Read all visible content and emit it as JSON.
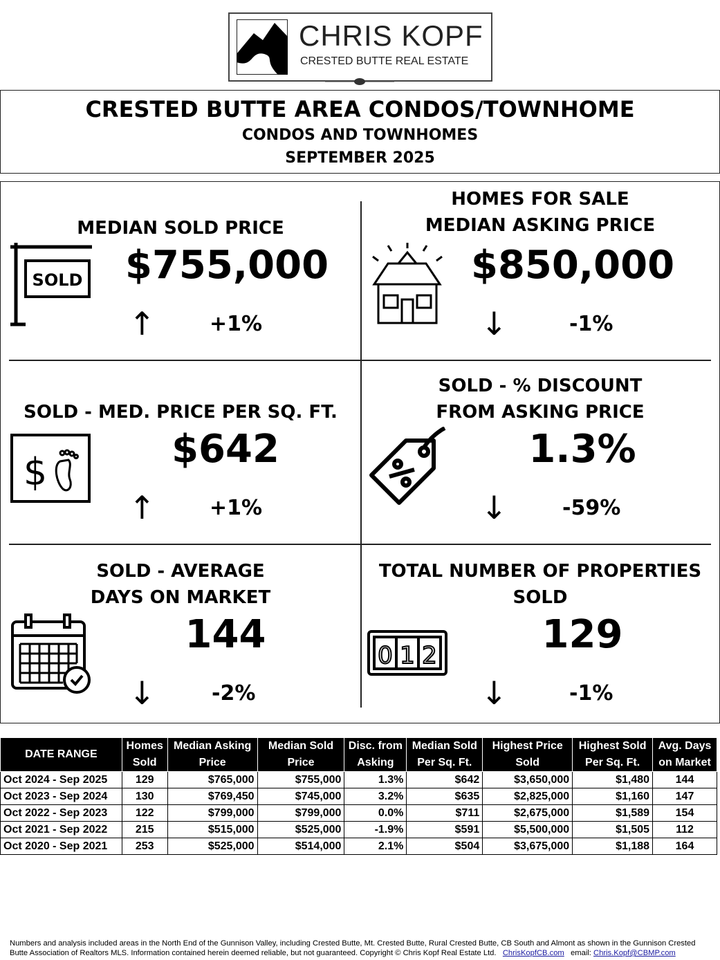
{
  "logo": {
    "name": "CHRIS KOPF",
    "tagline": "CRESTED BUTTE REAL ESTATE"
  },
  "header": {
    "title": "CRESTED BUTTE AREA CONDOS/TOWNHOME",
    "subtitle": "CONDOS AND TOWNHOMES",
    "period": "SEPTEMBER 2025"
  },
  "metrics": [
    {
      "label": "MEDIAN SOLD PRICE",
      "value": "$755,000",
      "change": "+1%",
      "direction": "up",
      "icon": "sold-sign-icon"
    },
    {
      "label1": "HOMES FOR SALE",
      "label2": "MEDIAN ASKING PRICE",
      "value": "$850,000",
      "change": "-1%",
      "direction": "down",
      "icon": "house-icon"
    },
    {
      "label": "SOLD - MED. PRICE PER SQ. FT.",
      "value": "$642",
      "change": "+1%",
      "direction": "up",
      "icon": "dollar-footprint-icon"
    },
    {
      "label1": "SOLD - % DISCOUNT",
      "label2": "FROM ASKING PRICE",
      "value": "1.3%",
      "change": "-59%",
      "direction": "down",
      "icon": "discount-tag-icon"
    },
    {
      "label1": "SOLD - AVERAGE",
      "label2": "DAYS ON MARKET",
      "value": "144",
      "change": "-2%",
      "direction": "down",
      "icon": "calendar-icon"
    },
    {
      "label1": "TOTAL NUMBER OF PROPERTIES",
      "label2": "SOLD",
      "value": "129",
      "change": "-1%",
      "direction": "down",
      "icon": "counter-icon"
    }
  ],
  "arrows": {
    "up": "↑",
    "down": "↓"
  },
  "table": {
    "headers": [
      [
        "DATE RANGE"
      ],
      [
        "Homes",
        "Sold"
      ],
      [
        "Median Asking",
        "Price"
      ],
      [
        "Median Sold",
        "Price"
      ],
      [
        "Disc. from",
        "Asking"
      ],
      [
        "Median Sold",
        "Per Sq. Ft."
      ],
      [
        "Highest Price",
        "Sold"
      ],
      [
        "Highest Sold",
        "Per Sq. Ft."
      ],
      [
        "Avg. Days",
        "on Market"
      ]
    ],
    "rows": [
      [
        "Oct 2024 - Sep 2025",
        "129",
        "$765,000",
        "$755,000",
        "1.3%",
        "$642",
        "$3,650,000",
        "$1,480",
        "144"
      ],
      [
        "Oct 2023 - Sep 2024",
        "130",
        "$769,450",
        "$745,000",
        "3.2%",
        "$635",
        "$2,825,000",
        "$1,160",
        "147"
      ],
      [
        "Oct 2022 - Sep 2023",
        "122",
        "$799,000",
        "$799,000",
        "0.0%",
        "$711",
        "$2,675,000",
        "$1,589",
        "154"
      ],
      [
        "Oct 2021 - Sep 2022",
        "215",
        "$515,000",
        "$525,000",
        "-1.9%",
        "$591",
        "$5,500,000",
        "$1,505",
        "112"
      ],
      [
        "Oct 2020 - Sep 2021",
        "253",
        "$525,000",
        "$514,000",
        "2.1%",
        "$504",
        "$3,675,000",
        "$1,188",
        "164"
      ]
    ]
  },
  "footer": {
    "line1": "Numbers and analysis included areas in the North End of the Gunnison Valley, including Crested Butte, Mt. Crested Butte, Rural Crested Butte, CB South and Almont as shown in the Gunnison Crested",
    "line2": "Butte Association of Realtors MLS.  Information contained herein deemed reliable, but not guaranteed. Copyright © Chris Kopf Real Estate Ltd.",
    "website": "ChrisKopfCB.com",
    "email_label": "email:",
    "email": "Chris.Kopf@CBMP.com"
  }
}
